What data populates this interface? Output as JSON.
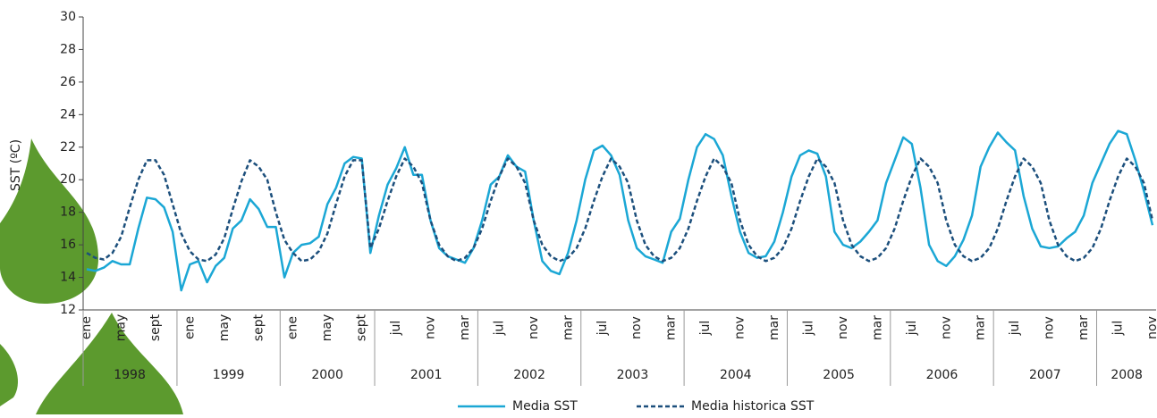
{
  "chart_data": {
    "type": "line",
    "y_label": "SST (ºC)",
    "categories": [
      "ene",
      null,
      null,
      null,
      "may",
      null,
      null,
      null,
      "sept",
      null,
      null,
      null,
      "ene",
      null,
      null,
      null,
      "may",
      null,
      null,
      null,
      "sept",
      null,
      null,
      null,
      "ene",
      null,
      null,
      null,
      "may",
      null,
      null,
      null,
      "sept",
      null,
      null,
      null,
      "jul",
      null,
      null,
      null,
      "nov",
      null,
      null,
      null,
      "mar",
      null,
      null,
      null,
      "jul",
      null,
      null,
      null,
      "nov",
      null,
      null,
      null,
      "mar",
      null,
      null,
      null,
      "jul",
      null,
      null,
      null,
      "nov",
      null,
      null,
      null,
      "mar",
      null,
      null,
      null,
      "jul",
      null,
      null,
      null,
      "nov",
      null,
      null,
      null,
      "mar",
      null,
      null,
      null,
      "jul",
      null,
      null,
      null,
      "nov",
      null,
      null,
      null,
      "mar",
      null,
      null,
      null,
      "jul",
      null,
      null,
      null,
      "nov",
      null,
      null,
      null,
      "mar",
      null,
      null,
      null,
      "jul",
      null,
      null,
      null,
      "nov",
      null,
      null,
      null,
      "mar",
      null,
      null,
      null,
      "jul",
      null,
      null,
      null,
      "nov"
    ],
    "years": [
      "1998",
      "1998",
      "1998",
      "1998",
      "1998",
      "1998",
      "1998",
      "1998",
      "1998",
      "1998",
      "1998",
      "1999",
      "1999",
      "1999",
      "1999",
      "1999",
      "1999",
      "1999",
      "1999",
      "1999",
      "1999",
      "1999",
      "1999",
      "2000",
      "2000",
      "2000",
      "2000",
      "2000",
      "2000",
      "2000",
      "2000",
      "2000",
      "2000",
      "2000",
      "2001",
      "2001",
      "2001",
      "2001",
      "2001",
      "2001",
      "2001",
      "2001",
      "2001",
      "2001",
      "2001",
      "2001",
      "2002",
      "2002",
      "2002",
      "2002",
      "2002",
      "2002",
      "2002",
      "2002",
      "2002",
      "2002",
      "2002",
      "2002",
      "2003",
      "2003",
      "2003",
      "2003",
      "2003",
      "2003",
      "2003",
      "2003",
      "2003",
      "2003",
      "2003",
      "2003",
      "2004",
      "2004",
      "2004",
      "2004",
      "2004",
      "2004",
      "2004",
      "2004",
      "2004",
      "2004",
      "2004",
      "2004",
      "2005",
      "2005",
      "2005",
      "2005",
      "2005",
      "2005",
      "2005",
      "2005",
      "2005",
      "2005",
      "2005",
      "2005",
      "2006",
      "2006",
      "2006",
      "2006",
      "2006",
      "2006",
      "2006",
      "2006",
      "2006",
      "2006",
      "2006",
      "2006",
      "2007",
      "2007",
      "2007",
      "2007",
      "2007",
      "2007",
      "2007",
      "2007",
      "2007",
      "2007",
      "2007",
      "2007",
      "2008",
      "2008",
      "2008",
      "2008",
      "2008",
      "2008",
      "2008"
    ],
    "series": [
      {
        "name": "Media SST",
        "color": "#1ba7d5",
        "dash": false,
        "values": [
          14.5,
          14.4,
          14.6,
          15.0,
          14.8,
          14.8,
          17.0,
          18.9,
          18.8,
          18.3,
          16.8,
          13.2,
          14.8,
          15.0,
          13.7,
          14.7,
          15.2,
          17.0,
          17.5,
          18.8,
          18.2,
          17.1,
          17.1,
          14.0,
          15.5,
          16.0,
          16.1,
          16.5,
          18.5,
          19.5,
          21.0,
          21.4,
          21.3,
          15.5,
          17.8,
          19.7,
          20.7,
          22.0,
          20.3,
          20.3,
          17.5,
          15.8,
          15.3,
          15.1,
          14.9,
          15.8,
          17.5,
          19.7,
          20.2,
          21.5,
          20.8,
          20.5,
          17.5,
          15.0,
          14.4,
          14.2,
          15.5,
          17.5,
          20.0,
          21.8,
          22.1,
          21.5,
          20.3,
          17.5,
          15.8,
          15.3,
          15.1,
          14.9,
          16.8,
          17.6,
          20.0,
          22.0,
          22.8,
          22.5,
          21.5,
          19.0,
          16.8,
          15.5,
          15.2,
          15.3,
          16.2,
          18.0,
          20.2,
          21.5,
          21.8,
          21.6,
          20.2,
          16.8,
          16.0,
          15.8,
          16.2,
          16.8,
          17.5,
          19.8,
          21.2,
          22.6,
          22.2,
          19.5,
          16.0,
          15.0,
          14.7,
          15.3,
          16.3,
          17.8,
          20.8,
          22.0,
          22.9,
          22.3,
          21.8,
          19.0,
          17.0,
          15.9,
          15.8,
          15.9,
          16.4,
          16.8,
          17.8,
          19.8,
          21.0,
          22.2,
          23.0,
          22.8,
          21.2,
          19.3,
          17.2
        ]
      },
      {
        "name": "Media historica SST",
        "color": "#1c4f7c",
        "dash": true,
        "values": [
          15.5,
          15.2,
          15.1,
          15.5,
          16.5,
          18.3,
          20.0,
          21.2,
          21.2,
          20.3,
          18.5,
          16.7,
          15.6,
          15.1,
          15.0,
          15.4,
          16.4,
          18.2,
          19.9,
          21.2,
          20.8,
          20.0,
          18.0,
          16.3,
          15.5,
          15.0,
          15.1,
          15.6,
          16.7,
          18.5,
          20.2,
          21.2,
          21.2,
          15.8,
          17.0,
          18.7,
          20.2,
          21.3,
          20.8,
          19.8,
          17.5,
          16.0,
          15.3,
          15.0,
          15.2,
          15.8,
          17.0,
          18.7,
          20.2,
          21.3,
          20.8,
          19.8,
          17.5,
          16.0,
          15.3,
          15.0,
          15.2,
          15.8,
          17.0,
          18.7,
          20.2,
          21.3,
          20.8,
          19.8,
          17.5,
          16.0,
          15.3,
          15.0,
          15.2,
          15.8,
          17.0,
          18.7,
          20.2,
          21.3,
          20.8,
          19.8,
          17.5,
          16.0,
          15.3,
          15.0,
          15.2,
          15.8,
          17.0,
          18.7,
          20.2,
          21.3,
          20.8,
          19.8,
          17.5,
          16.0,
          15.3,
          15.0,
          15.2,
          15.8,
          17.0,
          18.7,
          20.2,
          21.3,
          20.8,
          19.8,
          17.5,
          16.0,
          15.3,
          15.0,
          15.2,
          15.8,
          17.0,
          18.7,
          20.2,
          21.3,
          20.8,
          19.8,
          17.5,
          16.0,
          15.3,
          15.0,
          15.2,
          15.8,
          17.0,
          18.7,
          20.2,
          21.3,
          20.8,
          19.8,
          17.5
        ]
      }
    ],
    "ylim": [
      12,
      30
    ],
    "yticks": [
      12,
      14,
      16,
      18,
      20,
      22,
      24,
      26,
      28,
      30
    ],
    "grid": false
  }
}
